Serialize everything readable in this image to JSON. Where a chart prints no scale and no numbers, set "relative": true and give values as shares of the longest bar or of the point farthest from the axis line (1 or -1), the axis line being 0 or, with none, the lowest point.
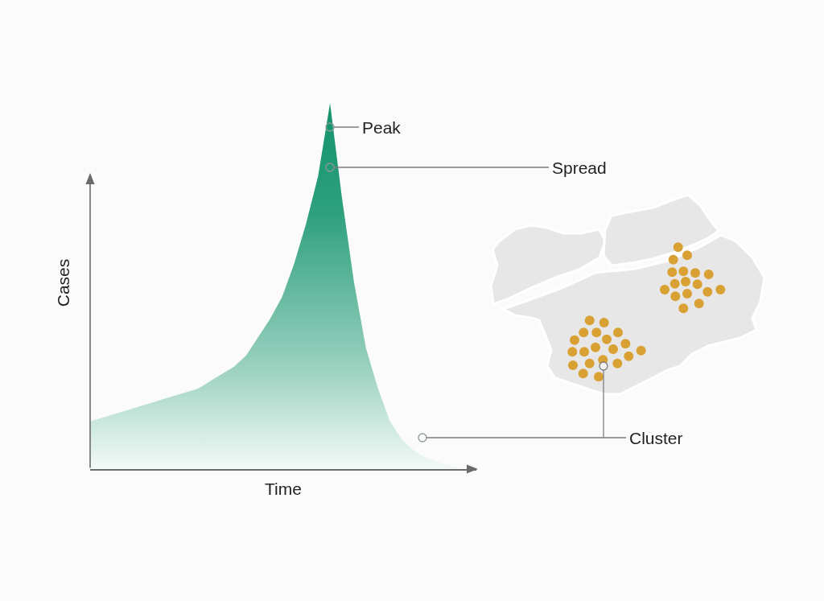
{
  "chart_data": {
    "type": "area",
    "xlabel": "Time",
    "ylabel": "Cases",
    "relative": true,
    "categories": [
      null,
      null,
      null,
      null,
      null,
      null,
      null,
      null,
      null,
      null,
      null,
      null,
      null,
      null,
      null,
      null,
      null,
      null,
      null,
      null,
      null,
      null,
      null,
      null,
      null,
      null,
      null,
      null,
      null,
      null,
      null,
      null
    ],
    "values": [
      0.13,
      0.14,
      0.15,
      0.16,
      0.17,
      0.18,
      0.19,
      0.2,
      0.21,
      0.22,
      0.24,
      0.26,
      0.28,
      0.31,
      0.36,
      0.41,
      0.47,
      0.56,
      0.67,
      0.8,
      1,
      0.74,
      0.51,
      0.33,
      0.22,
      0.13,
      0.08,
      0.05,
      0.03,
      0.02,
      0.01,
      0
    ],
    "color": "#12936b",
    "annotations": [
      "Peak",
      "Spread",
      "Cluster"
    ]
  }
}
